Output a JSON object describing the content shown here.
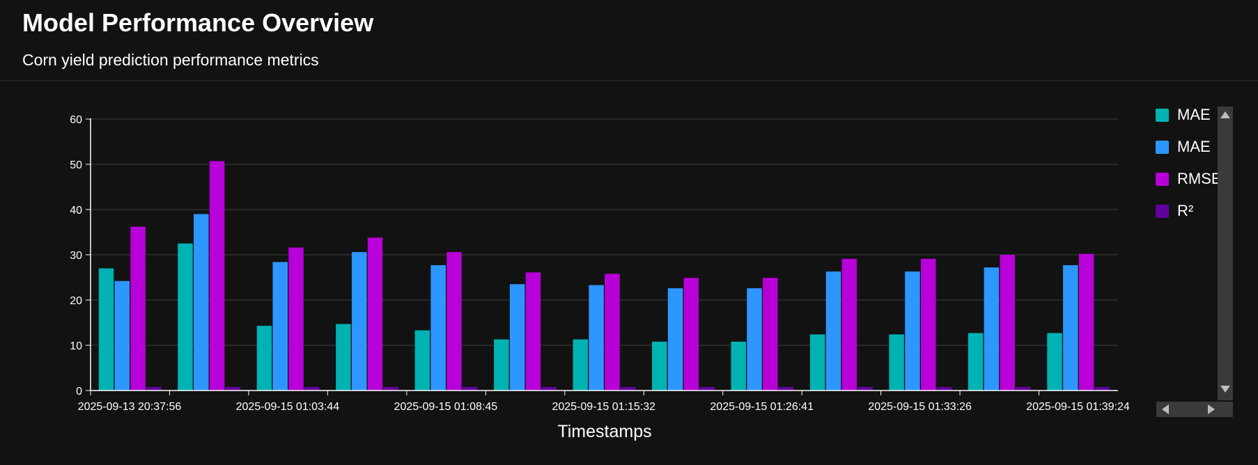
{
  "header": {
    "title": "Model Performance Overview",
    "subtitle": "Corn yield prediction performance metrics"
  },
  "chart_data": {
    "type": "bar",
    "xlabel": "Timestamps",
    "ylabel": "",
    "ylim": [
      0,
      60
    ],
    "yticks": [
      0,
      10,
      20,
      30,
      40,
      50,
      60
    ],
    "grid": true,
    "legend_position": "right",
    "categories": [
      "2025-09-13 20:37:56",
      "",
      "2025-09-15 01:03:44",
      "",
      "2025-09-15 01:08:45",
      "",
      "2025-09-15 01:15:32",
      "",
      "2025-09-15 01:26:41",
      "",
      "2025-09-15 01:33:26",
      "",
      "2025-09-15 01:39:24"
    ],
    "series": [
      {
        "name": "MAE",
        "color": "#00b2b2",
        "values": [
          27,
          32.5,
          14.3,
          14.7,
          13.3,
          11.3,
          11.3,
          10.8,
          10.8,
          12.4,
          12.4,
          12.7,
          12.7
        ]
      },
      {
        "name": "MAE",
        "color": "#2e96ff",
        "values": [
          24.2,
          39,
          28.4,
          30.6,
          27.7,
          23.5,
          23.3,
          22.6,
          22.6,
          26.3,
          26.3,
          27.2,
          27.7
        ]
      },
      {
        "name": "RMSE",
        "color": "#b800d8",
        "values": [
          36.2,
          50.7,
          31.6,
          33.8,
          30.6,
          26.1,
          25.8,
          24.9,
          24.9,
          29.1,
          29.1,
          30,
          30.2
        ]
      },
      {
        "name": "R²",
        "color": "#60009b",
        "values": [
          0.8,
          0.8,
          0.8,
          0.8,
          0.8,
          0.8,
          0.8,
          0.8,
          0.8,
          0.8,
          0.8,
          0.8,
          0.8
        ]
      }
    ]
  }
}
